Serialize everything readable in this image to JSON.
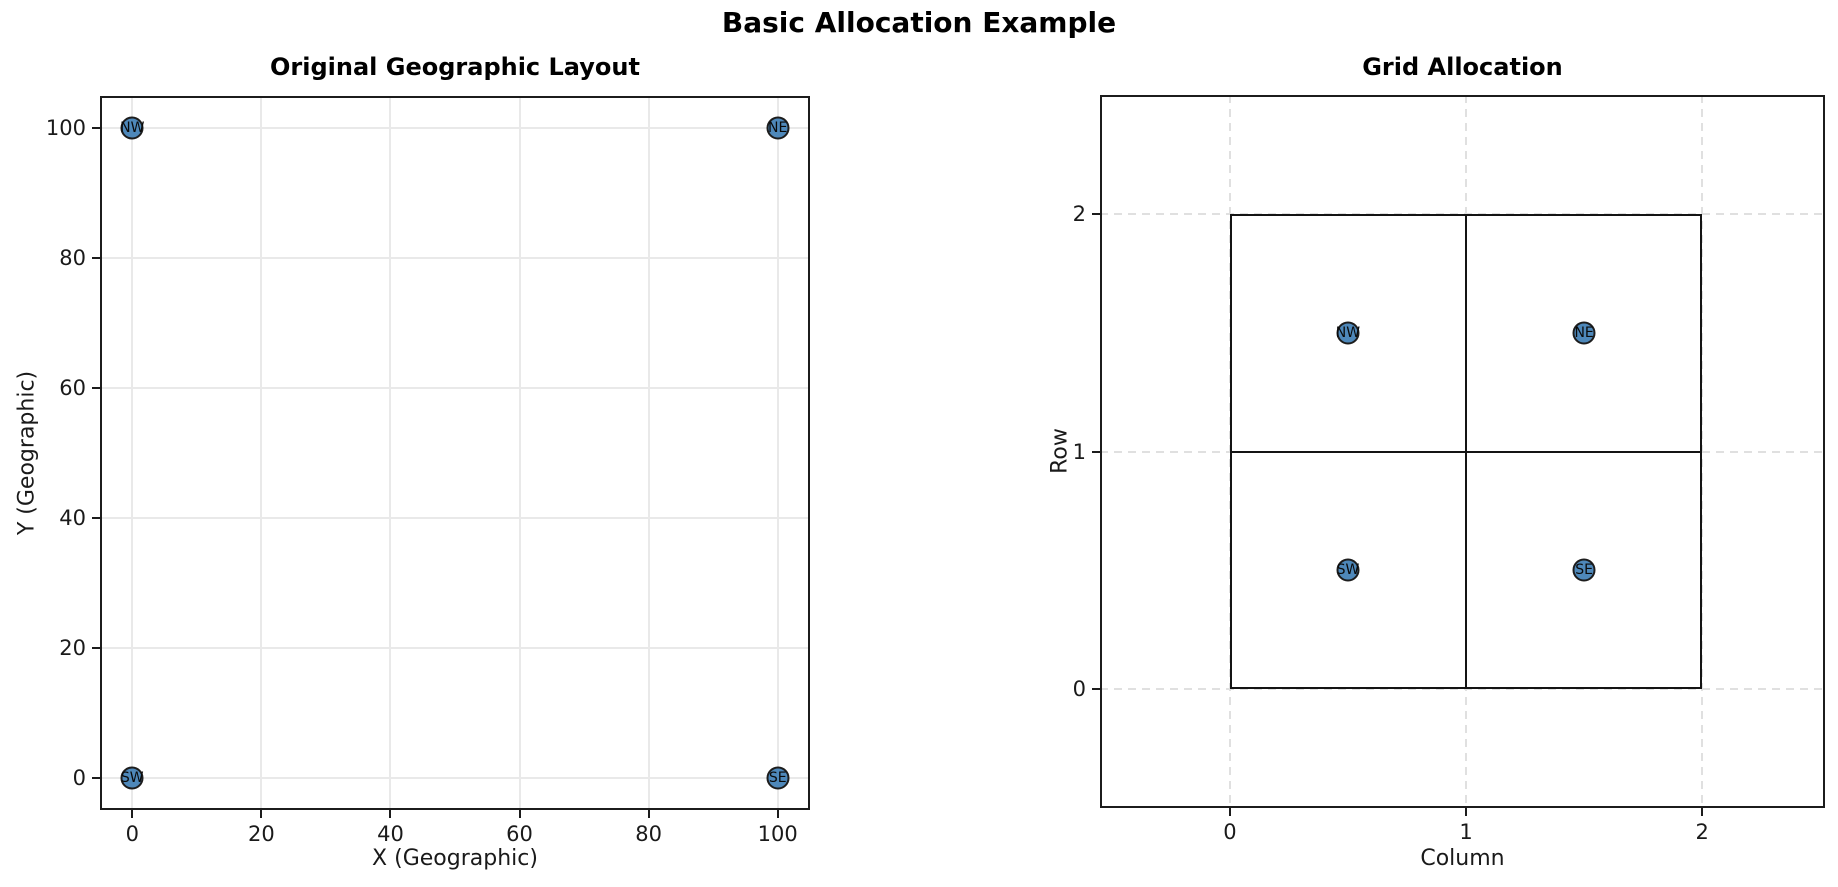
{
  "figure": {
    "title": "Basic Allocation Example"
  },
  "style": {
    "background": "#ffffff",
    "text_color": "#1a1a1a",
    "spine_color": "#1c1c1c",
    "marker_fill": "#4e88ba",
    "marker_edge": "#1d1d1d",
    "solid_grid_color": "#e9e9e9",
    "dashed_grid_color": "#e0e0e0",
    "cell_border_color": "#141414"
  },
  "chart_data": [
    {
      "type": "scatter",
      "title": "Original Geographic Layout",
      "xlabel": "X (Geographic)",
      "ylabel": "Y (Geographic)",
      "xlim": [
        -5,
        105
      ],
      "ylim": [
        -5,
        105
      ],
      "xticks": [
        0,
        20,
        40,
        60,
        80,
        100
      ],
      "yticks": [
        0,
        20,
        40,
        60,
        80,
        100
      ],
      "grid_style": "solid",
      "points": [
        {
          "label": "NW",
          "x": 0,
          "y": 100
        },
        {
          "label": "NE",
          "x": 100,
          "y": 100
        },
        {
          "label": "SW",
          "x": 0,
          "y": 0
        },
        {
          "label": "SE",
          "x": 100,
          "y": 0
        }
      ]
    },
    {
      "type": "scatter",
      "title": "Grid Allocation",
      "xlabel": "Column",
      "ylabel": "Row",
      "xlim": [
        -0.55,
        2.52
      ],
      "ylim": [
        -0.5,
        2.5
      ],
      "xticks": [
        0,
        1,
        2
      ],
      "yticks": [
        0,
        1,
        2
      ],
      "grid_style": "dashed",
      "grid_cells": {
        "origin": [
          0,
          0
        ],
        "cols": 2,
        "rows": 2,
        "cell_w": 1,
        "cell_h": 1
      },
      "points": [
        {
          "label": "NW",
          "x": 0.5,
          "y": 1.5
        },
        {
          "label": "NE",
          "x": 1.5,
          "y": 1.5
        },
        {
          "label": "SW",
          "x": 0.5,
          "y": 0.5
        },
        {
          "label": "SE",
          "x": 1.5,
          "y": 0.5
        }
      ]
    }
  ]
}
